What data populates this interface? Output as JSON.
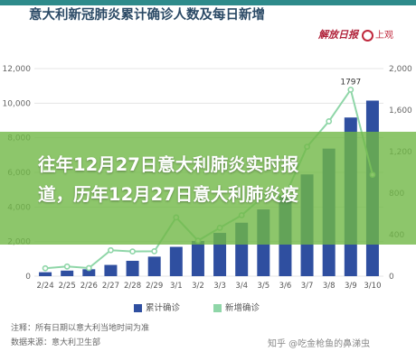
{
  "header": {
    "title": "意大利新冠肺炎累计确诊人数及每日新增",
    "logo_left": "解放日报",
    "logo_right": "上观"
  },
  "banner": {
    "text_line1": "往年12月27日意大利肺炎实时报",
    "text_line2": "道，历年12月27日意大利肺炎疫"
  },
  "legend": {
    "cumulative": "累计确诊",
    "new": "新增确诊"
  },
  "notes": {
    "line1": "注释：所有日期以意大利当地时间为准",
    "line2": "数据来源：意大利卫生部"
  },
  "watermark": {
    "text": "知乎 @吃金枪鱼的鼻涕虫"
  },
  "colors": {
    "bar": "#2f4fa0",
    "line": "#8fd6a8",
    "banner": "#70b846"
  },
  "chart_data": {
    "type": "bar",
    "categories": [
      "2/24",
      "2/25",
      "2/26",
      "2/27",
      "2/28",
      "2/29",
      "3/1",
      "3/2",
      "3/3",
      "3/4",
      "3/5",
      "3/6",
      "3/7",
      "3/8",
      "3/9",
      "3/10"
    ],
    "series": [
      {
        "name": "累计确诊",
        "type": "bar",
        "axis": "left",
        "values": [
          229,
          322,
          400,
          650,
          888,
          1128,
          1694,
          2036,
          2502,
          3089,
          3858,
          4636,
          5883,
          7375,
          9172,
          10149
        ]
      },
      {
        "name": "新增确诊",
        "type": "line",
        "axis": "right",
        "values": [
          76,
          93,
          78,
          250,
          238,
          240,
          566,
          342,
          466,
          587,
          769,
          778,
          1247,
          1492,
          1797,
          977
        ]
      }
    ],
    "annotations": [
      {
        "category": "3/9",
        "series": "新增确诊",
        "label": "1797"
      }
    ],
    "ylim_left": [
      0,
      12000
    ],
    "yticks_left": [
      "0",
      "2,000",
      "4,000",
      "6,000",
      "8,000",
      "10,000",
      "12,000"
    ],
    "ylim_right": [
      0,
      2000
    ],
    "yticks_right": [
      "0",
      "400",
      "800",
      "1,200",
      "1,600",
      "2,000"
    ],
    "grid": true,
    "legend_position": "bottom"
  }
}
